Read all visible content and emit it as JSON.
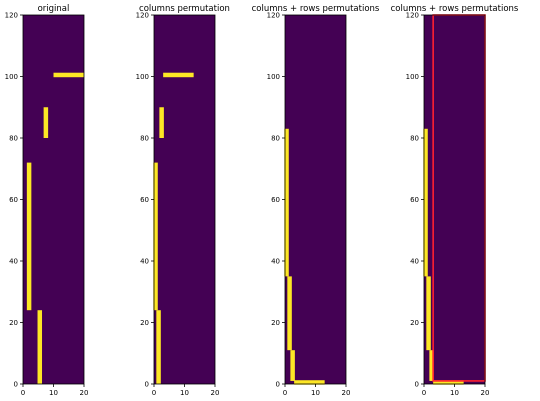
{
  "chart_data": [
    {
      "type": "heatmap",
      "title": "original",
      "xlim": [
        0,
        20
      ],
      "ylim": [
        0,
        120
      ],
      "xticks": [
        "0",
        "10",
        "20"
      ],
      "yticks": [
        "0",
        "20",
        "40",
        "60",
        "80",
        "100",
        "120"
      ],
      "background_color": "#440154",
      "line_color": "#fde725",
      "segments": [
        {
          "orientation": "vertical",
          "x": 2,
          "y": [
            24,
            72
          ]
        },
        {
          "orientation": "vertical",
          "x": 5.5,
          "y": [
            0,
            24
          ]
        },
        {
          "orientation": "vertical",
          "x": 7.5,
          "y": [
            80,
            90
          ]
        },
        {
          "orientation": "horizontal",
          "y": 100.5,
          "x": [
            10,
            20
          ]
        }
      ]
    },
    {
      "type": "heatmap",
      "title": "columns permutation",
      "xlim": [
        0,
        20
      ],
      "ylim": [
        0,
        120
      ],
      "xticks": [
        "0",
        "10",
        "20"
      ],
      "yticks": [
        "0",
        "20",
        "40",
        "60",
        "80",
        "100",
        "120"
      ],
      "background_color": "#440154",
      "line_color": "#fde725",
      "segments": [
        {
          "orientation": "vertical",
          "x": 0.5,
          "y": [
            24,
            72
          ]
        },
        {
          "orientation": "vertical",
          "x": 1.5,
          "y": [
            0,
            24
          ]
        },
        {
          "orientation": "vertical",
          "x": 2.5,
          "y": [
            80,
            90
          ]
        },
        {
          "orientation": "horizontal",
          "y": 100.5,
          "x": [
            3,
            13
          ]
        }
      ]
    },
    {
      "type": "heatmap",
      "title": "columns + rows permutations",
      "xlim": [
        0,
        20
      ],
      "ylim": [
        0,
        120
      ],
      "xticks": [
        "0",
        "10",
        "20"
      ],
      "yticks": [
        "0",
        "20",
        "40",
        "60",
        "80",
        "100",
        "120"
      ],
      "background_color": "#440154",
      "line_color": "#fde725",
      "segments": [
        {
          "orientation": "vertical",
          "x": 0.5,
          "y": [
            35,
            83
          ]
        },
        {
          "orientation": "vertical",
          "x": 1.5,
          "y": [
            11,
            35
          ]
        },
        {
          "orientation": "vertical",
          "x": 2.5,
          "y": [
            1,
            11
          ]
        },
        {
          "orientation": "horizontal",
          "y": 0.5,
          "x": [
            3,
            13
          ]
        }
      ]
    },
    {
      "type": "heatmap",
      "title": "columns + rows permutations",
      "xlim": [
        0,
        20
      ],
      "ylim": [
        0,
        120
      ],
      "xticks": [
        "0",
        "10",
        "20"
      ],
      "yticks": [
        "0",
        "20",
        "40",
        "60",
        "80",
        "100",
        "120"
      ],
      "background_color": "#440154",
      "line_color": "#fde725",
      "highlight_color": "#ff2030",
      "highlight_box": {
        "x": [
          3,
          20
        ],
        "y": [
          1,
          120
        ]
      },
      "segments": [
        {
          "orientation": "vertical",
          "x": 0.5,
          "y": [
            35,
            83
          ]
        },
        {
          "orientation": "vertical",
          "x": 1.5,
          "y": [
            11,
            35
          ]
        },
        {
          "orientation": "vertical",
          "x": 2.5,
          "y": [
            1,
            11
          ]
        },
        {
          "orientation": "horizontal",
          "y": 0.5,
          "x": [
            3,
            13
          ]
        }
      ]
    }
  ]
}
